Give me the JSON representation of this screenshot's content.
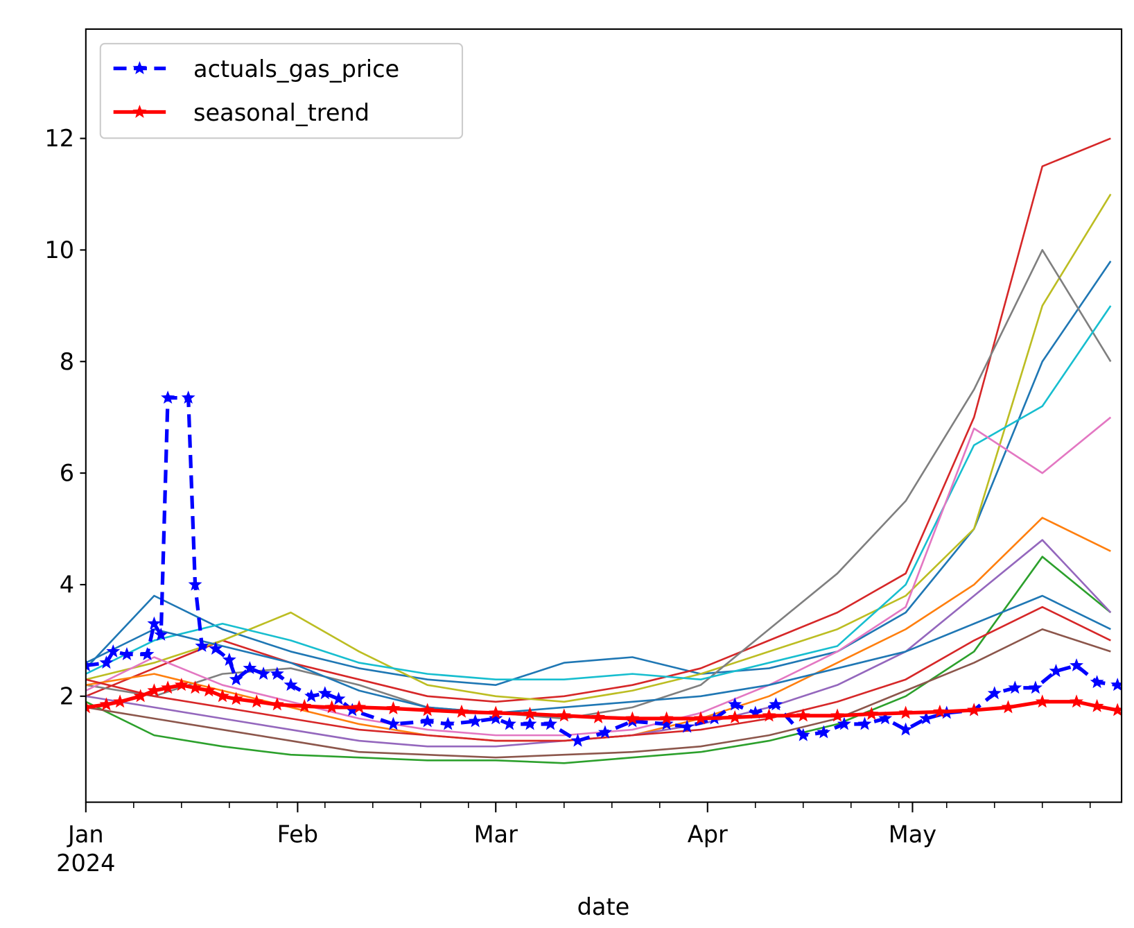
{
  "chart_data": {
    "type": "line",
    "x_label": "date",
    "xlim": [
      0,
      151.6
    ],
    "xticks": [
      {
        "value": 0,
        "label": "Jan\n2024"
      },
      {
        "value": 31,
        "label": "Feb"
      },
      {
        "value": 60,
        "label": "Mar"
      },
      {
        "value": 91,
        "label": "Apr"
      },
      {
        "value": 121,
        "label": "May"
      }
    ],
    "xminor_ticks": [
      7,
      14,
      21,
      28,
      35,
      42,
      49,
      56,
      63,
      70,
      77,
      84,
      98,
      105,
      112,
      119,
      126,
      133,
      140,
      147
    ],
    "ylim": [
      0.1,
      13.96
    ],
    "yticks": [
      2,
      4,
      6,
      8,
      10,
      12
    ],
    "grid": false,
    "legend": "upper left",
    "x": [
      0,
      10,
      20,
      30,
      40,
      50,
      60,
      70,
      80,
      90,
      100,
      110,
      120,
      130,
      140,
      150
    ],
    "series": [
      {
        "color": "#1f77b4",
        "values": [
          2.5,
          3.8,
          3.2,
          2.8,
          2.5,
          2.3,
          2.2,
          2.6,
          2.7,
          2.4,
          2.5,
          2.8,
          3.5,
          5.0,
          8.0,
          9.8
        ]
      },
      {
        "color": "#d62728",
        "values": [
          2.0,
          2.5,
          3.0,
          2.6,
          2.3,
          2.0,
          1.9,
          2.0,
          2.2,
          2.5,
          3.0,
          3.5,
          4.2,
          7.0,
          11.5,
          12.0
        ]
      },
      {
        "color": "#bcbd22",
        "values": [
          2.3,
          2.6,
          3.0,
          3.5,
          2.8,
          2.2,
          2.0,
          1.9,
          2.1,
          2.4,
          2.8,
          3.2,
          3.8,
          5.0,
          9.0,
          11.0
        ]
      },
      {
        "color": "#7f7f7f",
        "values": [
          2.2,
          2.0,
          2.4,
          2.5,
          2.2,
          1.8,
          1.7,
          1.6,
          1.8,
          2.2,
          3.2,
          4.2,
          5.5,
          7.5,
          10.0,
          8.0
        ]
      },
      {
        "color": "#17becf",
        "values": [
          2.4,
          3.0,
          3.3,
          3.0,
          2.6,
          2.4,
          2.3,
          2.3,
          2.4,
          2.3,
          2.6,
          2.9,
          4.0,
          6.5,
          7.2,
          9.0
        ]
      },
      {
        "color": "#e377c2",
        "values": [
          2.1,
          2.7,
          2.2,
          1.9,
          1.6,
          1.4,
          1.3,
          1.3,
          1.4,
          1.7,
          2.2,
          2.8,
          3.6,
          6.8,
          6.0,
          7.0
        ]
      },
      {
        "color": "#2ca02c",
        "values": [
          1.9,
          1.3,
          1.1,
          0.95,
          0.9,
          0.85,
          0.85,
          0.8,
          0.9,
          1.0,
          1.2,
          1.5,
          2.0,
          2.8,
          4.5,
          3.5
        ]
      },
      {
        "color": "#ff7f0e",
        "values": [
          2.2,
          2.4,
          2.1,
          1.8,
          1.5,
          1.3,
          1.2,
          1.2,
          1.3,
          1.6,
          2.0,
          2.6,
          3.2,
          4.0,
          5.2,
          4.6
        ]
      },
      {
        "color": "#9467bd",
        "values": [
          2.0,
          1.8,
          1.6,
          1.4,
          1.2,
          1.1,
          1.1,
          1.2,
          1.3,
          1.5,
          1.8,
          2.2,
          2.8,
          3.8,
          4.8,
          3.5
        ]
      },
      {
        "color": "#8c564b",
        "values": [
          1.8,
          1.6,
          1.4,
          1.2,
          1.0,
          0.95,
          0.9,
          0.95,
          1.0,
          1.1,
          1.3,
          1.6,
          2.1,
          2.6,
          3.2,
          2.8
        ]
      },
      {
        "color": "#1f77b4",
        "values": [
          2.6,
          3.2,
          2.9,
          2.6,
          2.1,
          1.8,
          1.7,
          1.8,
          1.9,
          2.0,
          2.2,
          2.5,
          2.8,
          3.3,
          3.8,
          3.2
        ]
      },
      {
        "color": "#d62728",
        "values": [
          2.3,
          2.0,
          1.8,
          1.6,
          1.4,
          1.3,
          1.2,
          1.2,
          1.3,
          1.4,
          1.6,
          1.9,
          2.3,
          3.0,
          3.6,
          3.0
        ]
      },
      {
        "name": "actuals_gas_price",
        "color": "#0000ff",
        "dashed": true,
        "marker": "star",
        "x": [
          0,
          3,
          4,
          6,
          9,
          10,
          11,
          12,
          15,
          16,
          17,
          19,
          21,
          22,
          24,
          26,
          28,
          30,
          33,
          35,
          37,
          39,
          45,
          50,
          53,
          57,
          60,
          62,
          65,
          68,
          72,
          76,
          80,
          85,
          88,
          92,
          95,
          98,
          101,
          105,
          108,
          111,
          114,
          117,
          120,
          123,
          126,
          130,
          133,
          136,
          139,
          142,
          145,
          148,
          151
        ],
        "values": [
          2.55,
          2.6,
          2.8,
          2.75,
          2.75,
          3.3,
          3.1,
          7.35,
          7.35,
          4.0,
          2.9,
          2.85,
          2.65,
          2.3,
          2.5,
          2.4,
          2.4,
          2.2,
          2.0,
          2.05,
          1.95,
          1.75,
          1.5,
          1.55,
          1.5,
          1.55,
          1.6,
          1.5,
          1.5,
          1.5,
          1.2,
          1.35,
          1.55,
          1.5,
          1.45,
          1.6,
          1.85,
          1.7,
          1.85,
          1.3,
          1.35,
          1.5,
          1.5,
          1.6,
          1.4,
          1.6,
          1.7,
          1.75,
          2.05,
          2.15,
          2.15,
          2.45,
          2.55,
          2.25,
          2.2
        ]
      },
      {
        "name": "seasonal_trend",
        "color": "#ff0000",
        "dashed": false,
        "marker": "star",
        "x": [
          0,
          3,
          5,
          8,
          10,
          12,
          14,
          16,
          18,
          20,
          22,
          25,
          28,
          32,
          36,
          40,
          45,
          50,
          55,
          60,
          65,
          70,
          75,
          80,
          85,
          90,
          95,
          100,
          105,
          110,
          115,
          120,
          125,
          130,
          135,
          140,
          145,
          148,
          151
        ],
        "values": [
          1.8,
          1.85,
          1.9,
          2.0,
          2.1,
          2.15,
          2.2,
          2.15,
          2.1,
          2.0,
          1.95,
          1.9,
          1.85,
          1.82,
          1.8,
          1.8,
          1.78,
          1.75,
          1.72,
          1.7,
          1.68,
          1.65,
          1.62,
          1.6,
          1.6,
          1.6,
          1.62,
          1.65,
          1.65,
          1.65,
          1.68,
          1.7,
          1.72,
          1.75,
          1.8,
          1.9,
          1.9,
          1.82,
          1.75
        ]
      }
    ]
  }
}
